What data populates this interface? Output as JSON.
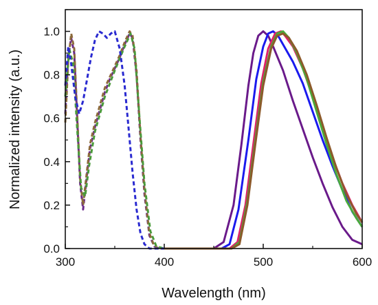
{
  "chart_data": {
    "type": "line",
    "title": "",
    "xlabel": "Wavelength (nm)",
    "ylabel": "Normalized intensity (a.u.)",
    "xlim": [
      300,
      600
    ],
    "ylim": [
      0.0,
      1.1
    ],
    "xticks": [
      300,
      400,
      500,
      600
    ],
    "yticks": [
      0.0,
      0.2,
      0.4,
      0.6,
      0.8,
      1.0
    ],
    "xtick_labels": [
      "300",
      "400",
      "500",
      "600"
    ],
    "ytick_labels": [
      "0.0",
      "0.2",
      "0.4",
      "0.6",
      "0.8",
      "1.0"
    ],
    "grid": false,
    "legend": "none",
    "series": [
      {
        "style": "dashed",
        "color": "#6a2a8a",
        "x": [
          300,
          303,
          306,
          309,
          312,
          315,
          318,
          321,
          325,
          330,
          335,
          340,
          345,
          350,
          355,
          360,
          365,
          368,
          372,
          376,
          380,
          385,
          390,
          395,
          400
        ],
        "y": [
          0.62,
          0.88,
          0.97,
          0.9,
          0.6,
          0.3,
          0.18,
          0.3,
          0.46,
          0.56,
          0.64,
          0.72,
          0.78,
          0.83,
          0.88,
          0.94,
          0.99,
          0.97,
          0.8,
          0.5,
          0.25,
          0.06,
          0.01,
          0.0,
          0.0
        ]
      },
      {
        "style": "dashed",
        "color": "#8c6a3a",
        "x": [
          300,
          303,
          306,
          309,
          312,
          315,
          318,
          321,
          325,
          330,
          335,
          340,
          345,
          350,
          355,
          360,
          365,
          368,
          372,
          376,
          380,
          385,
          390,
          395,
          400
        ],
        "y": [
          0.58,
          0.86,
          0.99,
          0.92,
          0.62,
          0.32,
          0.2,
          0.32,
          0.48,
          0.58,
          0.66,
          0.74,
          0.79,
          0.84,
          0.89,
          0.95,
          1.0,
          0.98,
          0.82,
          0.52,
          0.27,
          0.07,
          0.01,
          0.0,
          0.0
        ]
      },
      {
        "style": "dashed",
        "color": "#4a9a3a",
        "x": [
          300,
          304,
          308,
          312,
          316,
          320,
          324,
          330,
          340,
          350,
          360,
          366,
          370,
          375,
          380,
          386,
          392,
          400
        ],
        "y": [
          0.7,
          0.92,
          0.85,
          0.55,
          0.28,
          0.24,
          0.38,
          0.54,
          0.7,
          0.82,
          0.93,
          0.99,
          0.92,
          0.6,
          0.3,
          0.08,
          0.01,
          0.0
        ]
      },
      {
        "style": "dashed",
        "color": "#2a2ad0",
        "x": [
          300,
          303,
          306,
          310,
          314,
          318,
          322,
          326,
          330,
          334,
          338,
          342,
          346,
          350,
          355,
          360,
          364,
          368,
          372,
          376,
          380,
          385,
          390,
          400
        ],
        "y": [
          0.75,
          0.93,
          0.85,
          0.7,
          0.62,
          0.68,
          0.78,
          0.88,
          0.96,
          1.0,
          0.99,
          0.97,
          0.99,
          1.0,
          0.92,
          0.75,
          0.55,
          0.35,
          0.18,
          0.07,
          0.02,
          0.0,
          0.0,
          0.0
        ]
      },
      {
        "style": "solid",
        "color": "#6a1a8a",
        "x": [
          400,
          430,
          450,
          460,
          470,
          478,
          485,
          490,
          495,
          500,
          505,
          510,
          520,
          530,
          540,
          550,
          560,
          570,
          580,
          590,
          600
        ],
        "y": [
          0.0,
          0.0,
          0.0,
          0.03,
          0.2,
          0.48,
          0.75,
          0.9,
          0.98,
          1.0,
          0.98,
          0.93,
          0.82,
          0.68,
          0.55,
          0.42,
          0.3,
          0.19,
          0.1,
          0.04,
          0.02
        ]
      },
      {
        "style": "solid",
        "color": "#1a1aee",
        "x": [
          400,
          440,
          458,
          466,
          475,
          485,
          493,
          500,
          505,
          510,
          515,
          520,
          530,
          540,
          550,
          560,
          570,
          580,
          590,
          600
        ],
        "y": [
          0.0,
          0.0,
          0.0,
          0.02,
          0.18,
          0.5,
          0.78,
          0.93,
          0.99,
          1.0,
          0.98,
          0.94,
          0.86,
          0.76,
          0.63,
          0.5,
          0.38,
          0.27,
          0.17,
          0.1
        ]
      },
      {
        "style": "solid",
        "color": "#e0206a",
        "x": [
          400,
          450,
          466,
          474,
          482,
          490,
          498,
          505,
          512,
          518,
          522,
          530,
          540,
          550,
          560,
          570,
          580,
          590,
          600
        ],
        "y": [
          0.0,
          0.0,
          0.0,
          0.03,
          0.2,
          0.48,
          0.76,
          0.92,
          0.99,
          1.0,
          0.98,
          0.93,
          0.83,
          0.7,
          0.56,
          0.42,
          0.3,
          0.2,
          0.12
        ]
      },
      {
        "style": "solid",
        "color": "#4aaa3a",
        "x": [
          400,
          452,
          468,
          476,
          484,
          492,
          500,
          508,
          514,
          520,
          526,
          534,
          544,
          554,
          564,
          574,
          584,
          594,
          600
        ],
        "y": [
          0.0,
          0.0,
          0.0,
          0.03,
          0.22,
          0.5,
          0.77,
          0.93,
          0.99,
          1.0,
          0.97,
          0.9,
          0.78,
          0.63,
          0.48,
          0.34,
          0.22,
          0.14,
          0.1
        ]
      },
      {
        "style": "solid",
        "color": "#8c5a2a",
        "x": [
          400,
          452,
          468,
          476,
          484,
          492,
          500,
          508,
          514,
          520,
          526,
          534,
          544,
          554,
          564,
          574,
          584,
          594,
          600
        ],
        "y": [
          0.0,
          0.0,
          0.0,
          0.02,
          0.2,
          0.48,
          0.75,
          0.92,
          0.98,
          0.99,
          0.97,
          0.91,
          0.8,
          0.66,
          0.51,
          0.37,
          0.25,
          0.16,
          0.12
        ]
      }
    ]
  }
}
